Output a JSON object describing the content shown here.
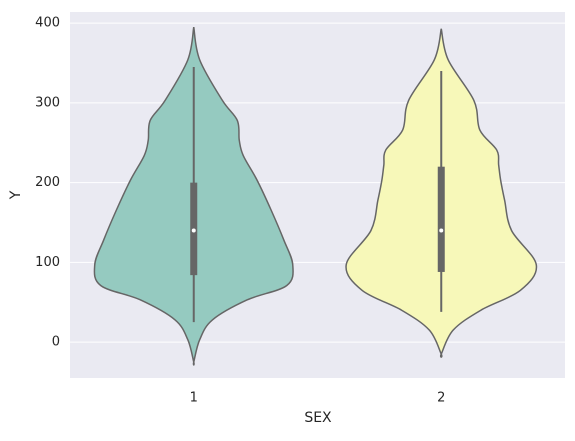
{
  "chart_data": {
    "type": "violin",
    "xlabel": "SEX",
    "ylabel": "Y",
    "categories": [
      "1",
      "2"
    ],
    "ylim": [
      -45,
      414
    ],
    "yticks": [
      0,
      100,
      200,
      300,
      400
    ],
    "grid": true,
    "background": "#eaeaf2",
    "outline_color": "#666666",
    "violins": [
      {
        "color": "#95cac0",
        "whisker_low": 25,
        "q1": 84,
        "median": 140,
        "q3": 200,
        "whisker_high": 345,
        "density_y": [
          395,
          354,
          303,
          278,
          253,
          234,
          203,
          166,
          128,
          97,
          71,
          53,
          28,
          3,
          -25
        ],
        "density_width": [
          0,
          0.06,
          0.29,
          0.44,
          0.46,
          0.5,
          0.64,
          0.78,
          0.91,
          1.0,
          0.94,
          0.54,
          0.19,
          0.06,
          0
        ]
      },
      {
        "color": "#f7f8b9",
        "whisker_low": 38,
        "q1": 88,
        "median": 140,
        "q3": 220,
        "whisker_high": 340,
        "density_y": [
          393,
          354,
          303,
          266,
          241,
          222,
          203,
          178,
          140,
          97,
          65,
          40,
          15,
          -15
        ],
        "density_width": [
          0,
          0.07,
          0.33,
          0.39,
          0.56,
          0.58,
          0.6,
          0.64,
          0.71,
          0.96,
          0.8,
          0.4,
          0.12,
          0
        ]
      }
    ]
  }
}
